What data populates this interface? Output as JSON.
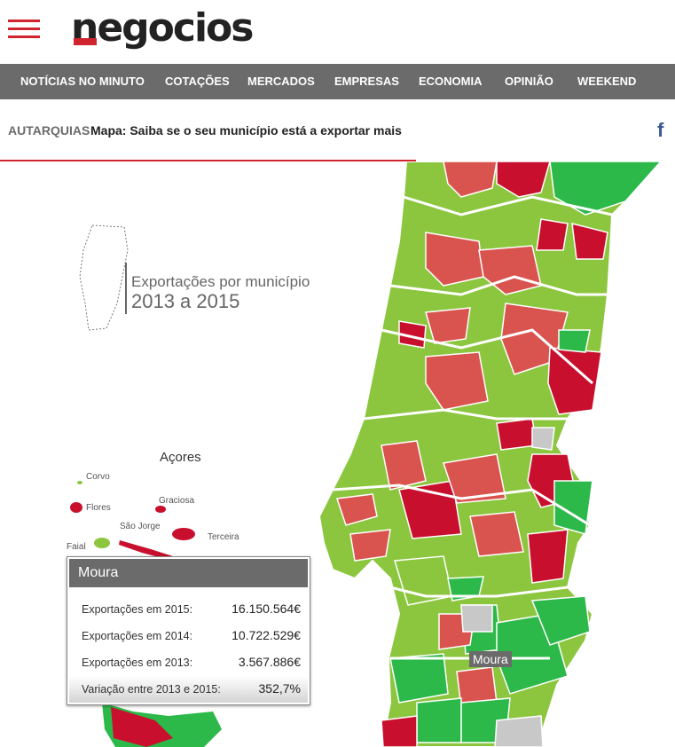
{
  "header": {
    "logo_text": "negocios",
    "brand_color": "#d0242e"
  },
  "nav": {
    "items": [
      {
        "label": "NOTÍCIAS NO MINUTO"
      },
      {
        "label": "COTAÇÕES"
      },
      {
        "label": "MERCADOS"
      },
      {
        "label": "EMPRESAS"
      },
      {
        "label": "ECONOMIA"
      },
      {
        "label": "OPINIÃO"
      },
      {
        "label": "WEEKEND"
      }
    ]
  },
  "article": {
    "section": "AUTARQUIAS",
    "title": "Mapa: Saiba se o seu município está a exportar mais",
    "share_icon": "facebook-icon"
  },
  "map": {
    "legend_line1": "Exportações por município",
    "legend_line2": "2013 a 2015",
    "azores_title": "Açores",
    "islands": [
      "Corvo",
      "Flores",
      "Graciosa",
      "São Jorge",
      "Terceira",
      "Faial"
    ],
    "hover_label": "Moura",
    "colors": {
      "dark_red": "#c8102e",
      "red": "#d9534f",
      "light_green": "#8cc63f",
      "green": "#2db84a",
      "grey": "#c8c8c8"
    }
  },
  "tooltip": {
    "title": "Moura",
    "rows": [
      {
        "label": "Exportações em 2015:",
        "value": "16.150.564€"
      },
      {
        "label": "Exportações em 2014:",
        "value": "10.722.529€"
      },
      {
        "label": "Exportações em 2013:",
        "value": "3.567.886€"
      },
      {
        "label": "Variação entre 2013 e 2015:",
        "value": "352,7%"
      }
    ]
  }
}
